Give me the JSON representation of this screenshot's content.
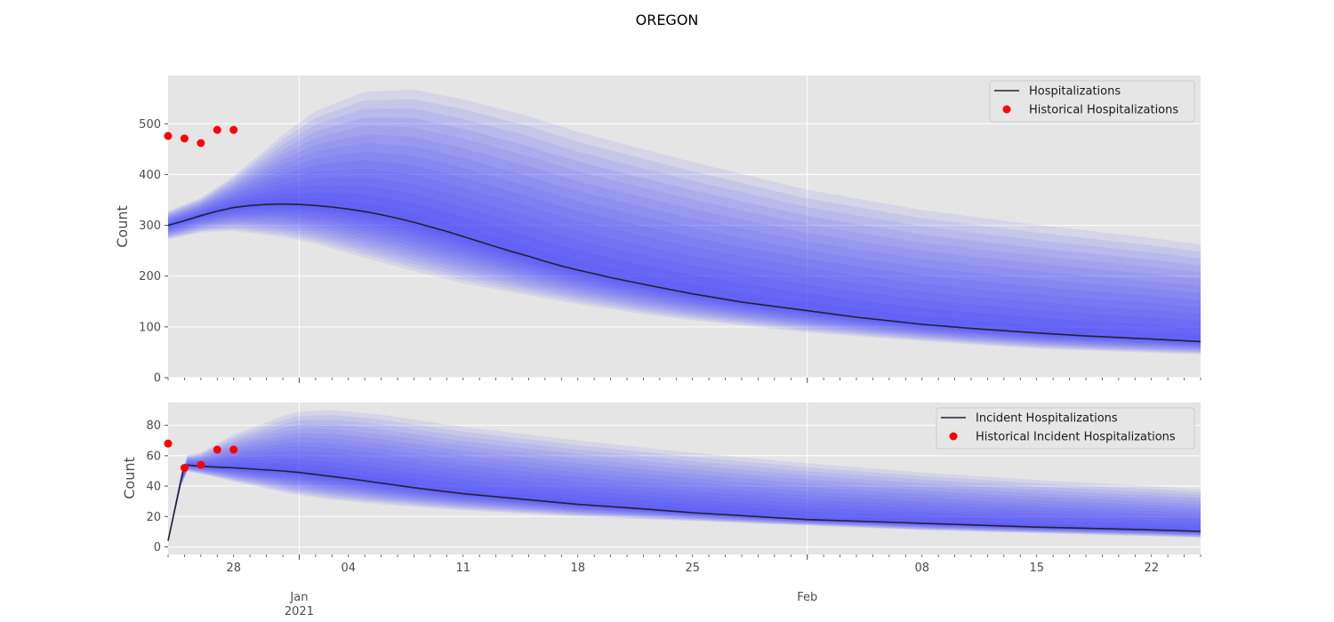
{
  "figure_title": "OREGON",
  "colors": {
    "panel_bg": "#e5e5e5",
    "grid": "#ffffff",
    "band": "#3333ff",
    "median_line": "#222233",
    "historical": "#ff0000",
    "tick_text": "#4d4d4d"
  },
  "chart_data": [
    {
      "type": "line",
      "ylabel": "Count",
      "ylim": [
        0,
        595
      ],
      "y_ticks": [
        0,
        100,
        200,
        300,
        400,
        500
      ],
      "xlim": [
        "2020-12-24",
        "2021-02-25"
      ],
      "x_major_ticks": [
        {
          "date": "2021-01-01",
          "label": "Jan\n2021"
        },
        {
          "date": "2021-02-01",
          "label": "Feb"
        }
      ],
      "x_minor_labels": [
        {
          "date": "2020-12-28",
          "label": "28"
        },
        {
          "date": "2021-01-04",
          "label": "04"
        },
        {
          "date": "2021-01-11",
          "label": "11"
        },
        {
          "date": "2021-01-18",
          "label": "18"
        },
        {
          "date": "2021-01-25",
          "label": "25"
        },
        {
          "date": "2021-02-08",
          "label": "08"
        },
        {
          "date": "2021-02-15",
          "label": "15"
        },
        {
          "date": "2021-02-22",
          "label": "22"
        }
      ],
      "grid": true,
      "legend_position": "top-right",
      "series": [
        {
          "name": "Hospitalizations",
          "style": "line",
          "x": [
            "2020-12-24",
            "2020-12-25",
            "2020-12-26",
            "2020-12-27",
            "2020-12-28",
            "2020-12-29",
            "2020-12-30",
            "2020-12-31",
            "2021-01-01",
            "2021-01-02",
            "2021-01-03",
            "2021-01-04",
            "2021-01-05",
            "2021-01-06",
            "2021-01-07",
            "2021-01-08",
            "2021-01-09",
            "2021-01-10",
            "2021-01-11",
            "2021-01-12",
            "2021-01-13",
            "2021-01-14",
            "2021-01-15",
            "2021-01-16",
            "2021-01-17",
            "2021-01-18",
            "2021-01-20",
            "2021-01-22",
            "2021-01-25",
            "2021-01-28",
            "2021-02-01",
            "2021-02-04",
            "2021-02-08",
            "2021-02-11",
            "2021-02-15",
            "2021-02-18",
            "2021-02-22",
            "2021-02-25"
          ],
          "values": [
            300,
            309,
            319,
            328,
            335,
            339,
            341,
            342,
            341,
            339,
            336,
            332,
            327,
            321,
            314,
            306,
            297,
            288,
            278,
            268,
            258,
            248,
            239,
            229,
            220,
            212,
            197,
            184,
            165,
            149,
            132,
            119,
            105,
            97,
            88,
            82,
            76,
            71
          ]
        },
        {
          "name": "Historical Hospitalizations",
          "style": "scatter",
          "x": [
            "2020-12-24",
            "2020-12-25",
            "2020-12-26",
            "2020-12-27",
            "2020-12-28"
          ],
          "values": [
            476,
            471,
            462,
            488,
            488
          ]
        }
      ],
      "bands": {
        "x": [
          "2020-12-24",
          "2020-12-26",
          "2020-12-28",
          "2020-12-31",
          "2021-01-02",
          "2021-01-05",
          "2021-01-08",
          "2021-01-11",
          "2021-01-15",
          "2021-01-18",
          "2021-01-22",
          "2021-01-25",
          "2021-02-01",
          "2021-02-08",
          "2021-02-15",
          "2021-02-22",
          "2021-02-25"
        ],
        "lower": [
          272,
          286,
          289,
          277,
          264,
          236,
          210,
          186,
          162,
          145,
          125,
          113,
          89,
          72,
          57,
          49,
          46
        ],
        "upper": [
          328,
          354,
          397,
          478,
          525,
          563,
          567,
          548,
          515,
          484,
          450,
          425,
          370,
          330,
          301,
          275,
          262
        ]
      }
    },
    {
      "type": "line",
      "ylabel": "Count",
      "ylim": [
        -5,
        95
      ],
      "y_ticks": [
        0,
        20,
        40,
        60,
        80
      ],
      "xlim": [
        "2020-12-24",
        "2021-02-25"
      ],
      "x_major_ticks": [
        {
          "date": "2021-01-01",
          "label": "Jan\n2021"
        },
        {
          "date": "2021-02-01",
          "label": "Feb"
        }
      ],
      "x_minor_labels": [
        {
          "date": "2020-12-28",
          "label": "28"
        },
        {
          "date": "2021-01-04",
          "label": "04"
        },
        {
          "date": "2021-01-11",
          "label": "11"
        },
        {
          "date": "2021-01-18",
          "label": "18"
        },
        {
          "date": "2021-01-25",
          "label": "25"
        },
        {
          "date": "2021-02-08",
          "label": "08"
        },
        {
          "date": "2021-02-15",
          "label": "15"
        },
        {
          "date": "2021-02-22",
          "label": "22"
        }
      ],
      "grid": true,
      "legend_position": "top-right",
      "series": [
        {
          "name": "Incident Hospitalizations",
          "style": "line",
          "x": [
            "2020-12-24",
            "2020-12-25",
            "2020-12-26",
            "2020-12-28",
            "2020-12-31",
            "2021-01-01",
            "2021-01-04",
            "2021-01-08",
            "2021-01-11",
            "2021-01-15",
            "2021-01-18",
            "2021-01-22",
            "2021-01-25",
            "2021-02-01",
            "2021-02-08",
            "2021-02-15",
            "2021-02-22",
            "2021-02-25"
          ],
          "values": [
            4,
            54,
            53,
            52,
            50,
            49,
            45,
            39,
            35,
            31,
            28,
            25,
            22.5,
            18,
            15.5,
            13,
            11.2,
            10.2
          ]
        },
        {
          "name": "Historical Incident Hospitalizations",
          "style": "scatter",
          "x": [
            "2020-12-24",
            "2020-12-25",
            "2020-12-26",
            "2020-12-27",
            "2020-12-28"
          ],
          "values": [
            68,
            52,
            54,
            64,
            64
          ]
        }
      ],
      "bands": {
        "x": [
          "2020-12-24",
          "2020-12-25",
          "2020-12-26",
          "2020-12-28",
          "2020-12-31",
          "2021-01-01",
          "2021-01-03",
          "2021-01-06",
          "2021-01-11",
          "2021-01-18",
          "2021-01-25",
          "2021-02-01",
          "2021-02-08",
          "2021-02-15",
          "2021-02-22",
          "2021-02-25"
        ],
        "lower": [
          3,
          50,
          48,
          43,
          36,
          34,
          31,
          28,
          24,
          20,
          17,
          14,
          11,
          9,
          7,
          6
        ],
        "upper": [
          6,
          60,
          62,
          74,
          86,
          89,
          90,
          87,
          79,
          70,
          62,
          55,
          49,
          44,
          40,
          38
        ]
      }
    }
  ]
}
